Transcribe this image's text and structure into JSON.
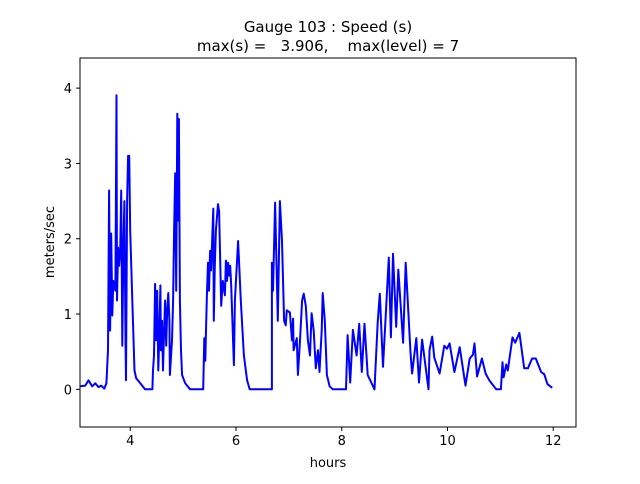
{
  "chart_data": {
    "type": "line",
    "title": "Gauge 103 : Speed (s)",
    "subtitle": "max(s) =   3.906,    max(level) = 7",
    "xlabel": "hours",
    "ylabel": "meters/sec",
    "xlim": [
      3.05,
      12.43
    ],
    "ylim": [
      -0.5,
      4.4
    ],
    "xticks": [
      4,
      6,
      8,
      10,
      12
    ],
    "yticks": [
      0,
      1,
      2,
      3,
      4
    ],
    "grid": false,
    "series": [
      {
        "name": "speed",
        "color": "#0000ff",
        "x": [
          3.06,
          3.15,
          3.21,
          3.28,
          3.34,
          3.4,
          3.45,
          3.51,
          3.55,
          3.58,
          3.6,
          3.62,
          3.64,
          3.66,
          3.68,
          3.72,
          3.74,
          3.75,
          3.77,
          3.79,
          3.81,
          3.83,
          3.85,
          3.87,
          3.89,
          3.91,
          3.92,
          3.94,
          3.96,
          3.98,
          4.0,
          4.04,
          4.08,
          4.11,
          4.19,
          4.28,
          4.42,
          4.43,
          4.45,
          4.47,
          4.49,
          4.51,
          4.53,
          4.55,
          4.57,
          4.58,
          4.6,
          4.62,
          4.64,
          4.66,
          4.68,
          4.7,
          4.72,
          4.74,
          4.75,
          4.79,
          4.81,
          4.83,
          4.85,
          4.87,
          4.89,
          4.91,
          4.92,
          4.94,
          4.96,
          4.98,
          5.04,
          5.13,
          5.38,
          5.4,
          5.42,
          5.43,
          5.45,
          5.47,
          5.49,
          5.51,
          5.53,
          5.57,
          5.58,
          5.6,
          5.62,
          5.66,
          5.68,
          5.72,
          5.75,
          5.79,
          5.81,
          5.83,
          5.85,
          5.87,
          5.89,
          5.91,
          5.96,
          5.98,
          6.04,
          6.09,
          6.15,
          6.21,
          6.26,
          6.68,
          6.68,
          6.7,
          6.74,
          6.79,
          6.83,
          6.87,
          6.91,
          6.94,
          6.96,
          7.02,
          7.06,
          7.08,
          7.09,
          7.15,
          7.17,
          7.21,
          7.25,
          7.28,
          7.32,
          7.36,
          7.4,
          7.43,
          7.47,
          7.51,
          7.55,
          7.58,
          7.62,
          7.64,
          7.68,
          7.72,
          7.77,
          7.83,
          8.08,
          8.11,
          8.16,
          8.21,
          8.28,
          8.33,
          8.38,
          8.43,
          8.49,
          8.62,
          8.68,
          8.72,
          8.78,
          8.89,
          8.93,
          8.97,
          9.03,
          9.07,
          9.16,
          9.21,
          9.3,
          9.33,
          9.41,
          9.46,
          9.52,
          9.64,
          9.66,
          9.71,
          9.75,
          9.85,
          9.94,
          9.99,
          10.04,
          10.13,
          10.23,
          10.34,
          10.42,
          10.48,
          10.51,
          10.56,
          10.65,
          10.72,
          10.79,
          10.92,
          11.01,
          11.04,
          11.06,
          11.11,
          11.14,
          11.23,
          11.28,
          11.36,
          11.45,
          11.52,
          11.6,
          11.67,
          11.77,
          11.83,
          11.89,
          11.98
        ],
        "y": [
          0.04,
          0.05,
          0.12,
          0.04,
          0.08,
          0.03,
          0.05,
          0.01,
          0.08,
          0.52,
          2.64,
          0.78,
          2.07,
          0.98,
          1.44,
          1.31,
          3.906,
          1.18,
          1.88,
          1.64,
          1.84,
          2.64,
          0.58,
          1.91,
          2.5,
          0.65,
          0.12,
          2.5,
          3.1,
          3.1,
          2.11,
          1.18,
          0.25,
          0.15,
          0.08,
          0,
          0,
          0.25,
          0.45,
          1.4,
          0.65,
          1.31,
          0.25,
          0.72,
          1.38,
          0.52,
          0.91,
          0.25,
          0.78,
          1.18,
          0.58,
          1.05,
          1.28,
          0.91,
          0.19,
          0.65,
          1.18,
          2.11,
          2.87,
          1.31,
          3.66,
          2.24,
          3.59,
          1.18,
          0.52,
          0.19,
          0.08,
          0,
          0,
          0.68,
          0.38,
          0.72,
          1.25,
          1.68,
          1.31,
          1.84,
          1.58,
          2.4,
          0.91,
          1.64,
          2.11,
          2.46,
          2.37,
          1.11,
          1.44,
          1.25,
          1.71,
          1.44,
          1.68,
          1.51,
          1.64,
          1.38,
          0.32,
          1.18,
          1.97,
          1.18,
          0.45,
          0.12,
          0,
          0,
          1.68,
          1.31,
          2.48,
          0.91,
          2.5,
          1.97,
          0.91,
          0.85,
          1.05,
          1.02,
          0.65,
          0.94,
          0.52,
          0.68,
          0.19,
          0.65,
          1.18,
          1.27,
          1.11,
          0.65,
          0.45,
          1.01,
          0.78,
          0.28,
          0.52,
          0.23,
          0.78,
          1.28,
          0.91,
          0.19,
          0.04,
          0,
          0,
          0.72,
          0.09,
          0.79,
          0.45,
          0.87,
          0.23,
          0.87,
          0.19,
          0,
          0.89,
          1.27,
          0.3,
          1.75,
          0.69,
          1.8,
          0.83,
          1.59,
          0.62,
          1.68,
          0.49,
          0.21,
          0.68,
          0.09,
          0.66,
          0,
          0.52,
          0.7,
          0.42,
          0.21,
          0.58,
          0.54,
          0.61,
          0.23,
          0.56,
          0.05,
          0.41,
          0.46,
          0.61,
          0.17,
          0.41,
          0.21,
          0.12,
          0,
          0,
          0.36,
          0.16,
          0.33,
          0.25,
          0.69,
          0.62,
          0.75,
          0.28,
          0.28,
          0.41,
          0.41,
          0.23,
          0.2,
          0.07,
          0.02
        ]
      }
    ]
  }
}
